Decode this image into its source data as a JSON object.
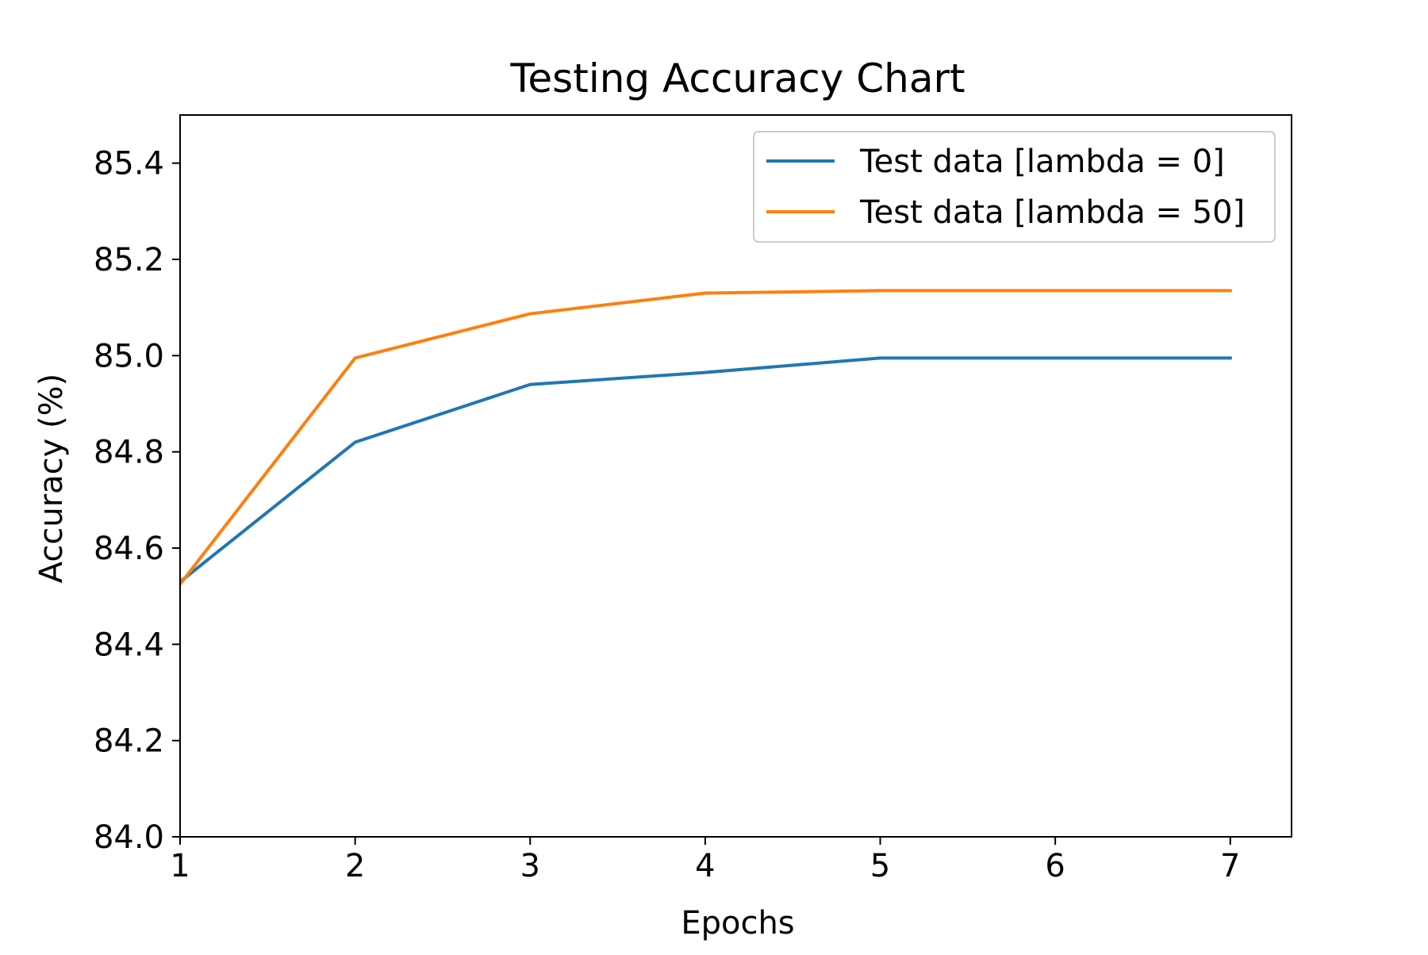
{
  "chart_data": {
    "type": "line",
    "title": "Testing Accuracy Chart",
    "xlabel": "Epochs",
    "ylabel": "Accuracy (%)",
    "x": [
      1,
      2,
      3,
      4,
      5,
      6,
      7
    ],
    "xlim": [
      1,
      7.35
    ],
    "ylim": [
      84.0,
      85.5
    ],
    "xticks": [
      1,
      2,
      3,
      4,
      5,
      6,
      7
    ],
    "yticks": [
      84.0,
      84.2,
      84.4,
      84.6,
      84.8,
      85.0,
      85.2,
      85.4
    ],
    "ytick_labels": [
      "84.0",
      "84.2",
      "84.4",
      "84.6",
      "84.8",
      "85.0",
      "85.2",
      "85.4"
    ],
    "grid": false,
    "legend_position": "top-right",
    "series": [
      {
        "name": "Test data [lambda = 0]",
        "color": "#1f77b4",
        "values": [
          84.53,
          84.82,
          84.94,
          84.965,
          84.995,
          84.995,
          84.995
        ]
      },
      {
        "name": "Test data [lambda = 50]",
        "color": "#ff7f0e",
        "values": [
          84.525,
          84.995,
          85.087,
          85.13,
          85.135,
          85.135,
          85.135
        ]
      }
    ]
  }
}
